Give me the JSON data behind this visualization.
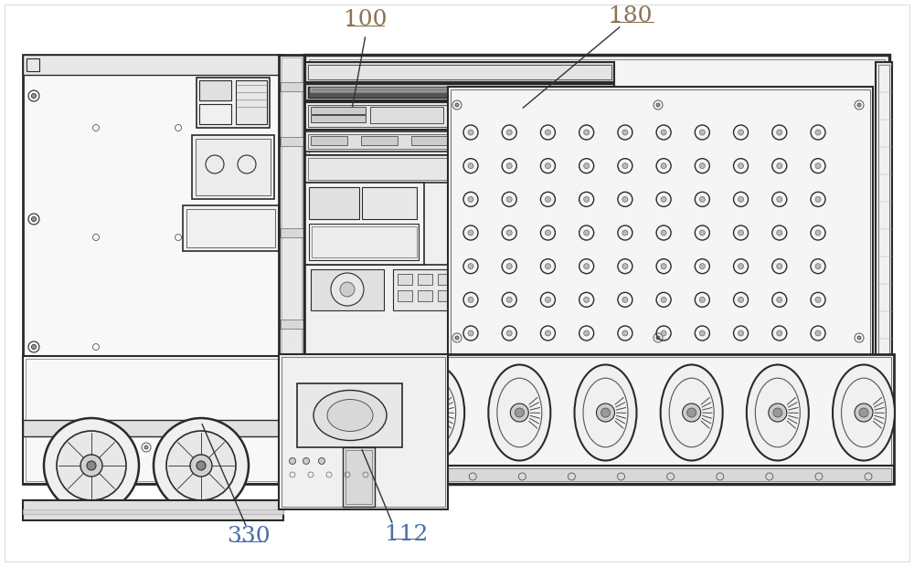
{
  "bg_color": "#ffffff",
  "line_color": "#2a2a2a",
  "label_color_gold": "#8B7355",
  "label_color_blue": "#4a6fa5",
  "fig_width": 10.0,
  "fig_height": 6.2,
  "dpi": 100
}
